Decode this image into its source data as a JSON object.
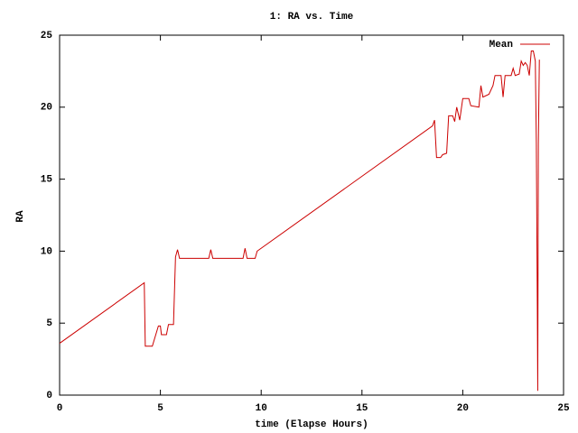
{
  "chart_data": {
    "type": "line",
    "title": "1: RA vs. Time",
    "x_label": "time (Elapse Hours)",
    "y_label": "RA",
    "xlim": [
      0,
      25
    ],
    "ylim": [
      0,
      25
    ],
    "xticks": [
      0,
      5,
      10,
      15,
      20,
      25
    ],
    "yticks": [
      0,
      5,
      10,
      15,
      20,
      25
    ],
    "legend": "top-right",
    "series": [
      {
        "name": "Mean",
        "color": "#cc0000",
        "x": [
          0,
          4.2,
          4.25,
          4.6,
          4.9,
          5.0,
          5.05,
          5.3,
          5.4,
          5.65,
          5.75,
          5.85,
          5.95,
          7.4,
          7.5,
          7.6,
          9.1,
          9.2,
          9.3,
          9.7,
          9.8,
          18.5,
          18.6,
          18.7,
          18.9,
          19.0,
          19.2,
          19.3,
          19.5,
          19.6,
          19.7,
          19.85,
          20.0,
          20.3,
          20.4,
          20.8,
          20.9,
          21.0,
          21.3,
          21.5,
          21.6,
          21.9,
          22.0,
          22.1,
          22.4,
          22.5,
          22.6,
          22.8,
          22.9,
          23.0,
          23.1,
          23.2,
          23.3,
          23.4,
          23.5,
          23.6,
          23.65,
          23.7,
          23.72,
          23.75,
          23.8
        ],
        "values": [
          3.6,
          7.8,
          3.4,
          3.4,
          4.8,
          4.8,
          4.2,
          4.2,
          4.9,
          4.9,
          9.6,
          10.1,
          9.5,
          9.5,
          10.1,
          9.5,
          9.5,
          10.2,
          9.5,
          9.5,
          10.0,
          18.7,
          19.1,
          16.5,
          16.5,
          16.7,
          16.8,
          19.4,
          19.4,
          19.0,
          20.0,
          19.1,
          20.6,
          20.6,
          20.1,
          20.0,
          21.5,
          20.7,
          20.9,
          21.5,
          22.2,
          22.2,
          20.7,
          22.2,
          22.2,
          22.7,
          22.2,
          22.3,
          23.2,
          22.9,
          23.1,
          22.9,
          22.2,
          23.9,
          23.9,
          23.2,
          17.5,
          6.0,
          0.3,
          17.5,
          23.3
        ]
      }
    ]
  }
}
